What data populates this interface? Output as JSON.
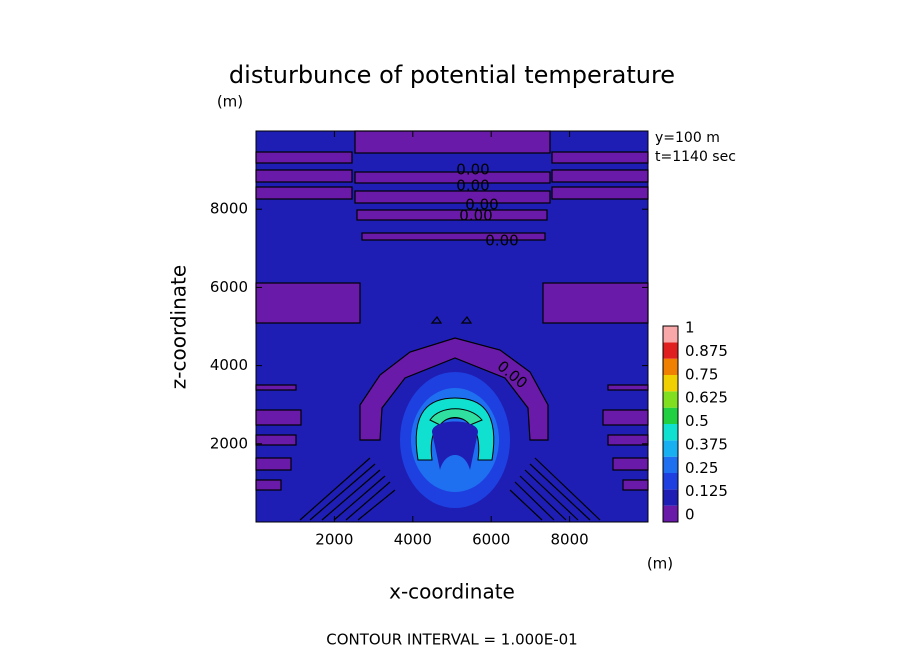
{
  "chart_data": {
    "type": "contour",
    "title": "disturbunce of potential temperature",
    "y_unit": "(m)",
    "x_unit": "(m)",
    "annotations": [
      "y=100 m",
      "t=1140 sec"
    ],
    "xlabel": "x-coordinate",
    "ylabel": "z-coordinate",
    "xlim": [
      0,
      10000
    ],
    "ylim": [
      0,
      10000
    ],
    "xticks": [
      2000,
      4000,
      6000,
      8000
    ],
    "yticks": [
      2000,
      4000,
      6000,
      8000
    ],
    "contour_labels": [
      "0.00",
      "0.00",
      "0.00",
      "0.00",
      "0.00",
      "0.00"
    ],
    "colorbar": {
      "ticks": [
        0,
        0.125,
        0.25,
        0.375,
        0.5,
        0.625,
        0.75,
        0.875,
        1
      ],
      "colors": [
        "#6a1aa8",
        "#1e1eb4",
        "#1e40e0",
        "#1e70f0",
        "#18b0f0",
        "#10e0d0",
        "#20d040",
        "#80e020",
        "#f0d000",
        "#f08000",
        "#e02020",
        "#f8a8a8"
      ]
    },
    "footer": "CONTOUR INTERVAL = 1.000E-01"
  }
}
